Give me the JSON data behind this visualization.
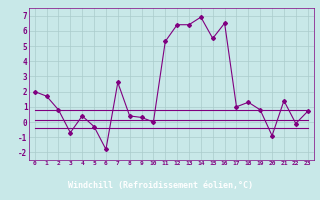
{
  "xlabel": "Windchill (Refroidissement éolien,°C)",
  "x": [
    0,
    1,
    2,
    3,
    4,
    5,
    6,
    7,
    8,
    9,
    10,
    11,
    12,
    13,
    14,
    15,
    16,
    17,
    18,
    19,
    20,
    21,
    22,
    23
  ],
  "main_curve": [
    2.0,
    1.7,
    0.8,
    -0.7,
    0.4,
    -0.3,
    -1.8,
    2.6,
    0.4,
    0.3,
    0.0,
    5.3,
    6.4,
    6.4,
    6.9,
    5.5,
    6.5,
    1.0,
    1.3,
    0.8,
    -0.9,
    1.4,
    -0.1,
    0.7
  ],
  "flat_line1": [
    0.8,
    0.8,
    0.8,
    0.8,
    0.8,
    0.8,
    0.8,
    0.8,
    0.8,
    0.8,
    0.8,
    0.8,
    0.8,
    0.8,
    0.8,
    0.8,
    0.8,
    0.8,
    0.8,
    0.8,
    0.8,
    0.8,
    0.8,
    0.8
  ],
  "flat_line2": [
    0.1,
    0.1,
    0.1,
    0.1,
    0.1,
    0.1,
    0.1,
    0.1,
    0.1,
    0.1,
    0.1,
    0.1,
    0.1,
    0.1,
    0.1,
    0.1,
    0.1,
    0.1,
    0.1,
    0.1,
    0.1,
    0.1,
    0.1,
    0.1
  ],
  "flat_line3": [
    -0.4,
    -0.4,
    -0.4,
    -0.4,
    -0.4,
    -0.4,
    -0.4,
    -0.4,
    -0.4,
    -0.4,
    -0.4,
    -0.4,
    -0.4,
    -0.4,
    -0.4,
    -0.4,
    -0.4,
    -0.4,
    -0.4,
    -0.4,
    -0.4,
    -0.4,
    -0.4,
    -0.4
  ],
  "line_color": "#800080",
  "bg_color": "#c8e8e8",
  "grid_color": "#aacccc",
  "ylim": [
    -2.5,
    7.5
  ],
  "xlim": [
    -0.5,
    23.5
  ],
  "yticks": [
    -2,
    -1,
    0,
    1,
    2,
    3,
    4,
    5,
    6,
    7
  ],
  "xticks": [
    0,
    1,
    2,
    3,
    4,
    5,
    6,
    7,
    8,
    9,
    10,
    11,
    12,
    13,
    14,
    15,
    16,
    17,
    18,
    19,
    20,
    21,
    22,
    23
  ],
  "xlabel_bg": "#800080",
  "xlabel_fg": "#ffffff"
}
